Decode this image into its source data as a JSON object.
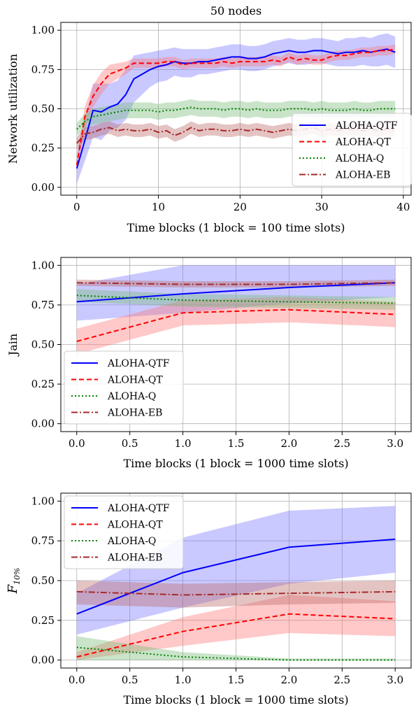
{
  "chart_data": [
    {
      "type": "line",
      "title": "50 nodes",
      "xlabel": "Time blocks (1 block = 100 time slots)",
      "ylabel": "Network utilization",
      "xlim": [
        -1.95,
        40.95
      ],
      "ylim": [
        -0.05,
        1.05
      ],
      "xticks": [
        "0",
        "10",
        "20",
        "30",
        "40"
      ],
      "yticks": [
        "0.00",
        "0.25",
        "0.50",
        "0.75",
        "1.00"
      ],
      "grid": true,
      "legend_position": "center-right",
      "series": [
        {
          "name": "ALOHA-QTF",
          "color": "#0000ff",
          "style": "solid",
          "x": [
            0,
            1,
            2,
            3,
            4,
            5,
            6,
            7,
            8,
            9,
            10,
            11,
            12,
            13,
            14,
            15,
            16,
            17,
            18,
            19,
            20,
            21,
            22,
            23,
            24,
            25,
            26,
            27,
            28,
            29,
            30,
            31,
            32,
            33,
            34,
            35,
            36,
            37,
            38,
            39
          ],
          "y": [
            0.12,
            0.3,
            0.49,
            0.48,
            0.51,
            0.53,
            0.59,
            0.69,
            0.72,
            0.75,
            0.77,
            0.78,
            0.8,
            0.79,
            0.79,
            0.8,
            0.8,
            0.81,
            0.82,
            0.83,
            0.83,
            0.82,
            0.82,
            0.83,
            0.85,
            0.86,
            0.87,
            0.86,
            0.86,
            0.87,
            0.87,
            0.86,
            0.85,
            0.86,
            0.86,
            0.87,
            0.86,
            0.87,
            0.88,
            0.86
          ],
          "band": [
            0.1,
            0.13,
            0.17,
            0.18,
            0.15,
            0.15,
            0.16,
            0.15,
            0.13,
            0.11,
            0.1,
            0.1,
            0.09,
            0.09,
            0.09,
            0.08,
            0.08,
            0.08,
            0.08,
            0.08,
            0.08,
            0.08,
            0.08,
            0.08,
            0.08,
            0.08,
            0.08,
            0.08,
            0.08,
            0.08,
            0.08,
            0.08,
            0.08,
            0.09,
            0.09,
            0.09,
            0.09,
            0.1,
            0.1,
            0.1
          ],
          "band_color": "#7777ff"
        },
        {
          "name": "ALOHA-QT",
          "color": "#ff0000",
          "style": "dashed",
          "x": [
            0,
            1,
            2,
            3,
            4,
            5,
            6,
            7,
            8,
            9,
            10,
            11,
            12,
            13,
            14,
            15,
            16,
            17,
            18,
            19,
            20,
            21,
            22,
            23,
            24,
            25,
            26,
            27,
            28,
            29,
            30,
            31,
            32,
            33,
            34,
            35,
            36,
            37,
            38,
            39
          ],
          "y": [
            0.14,
            0.45,
            0.58,
            0.66,
            0.72,
            0.74,
            0.76,
            0.79,
            0.79,
            0.79,
            0.79,
            0.8,
            0.8,
            0.78,
            0.79,
            0.79,
            0.79,
            0.79,
            0.8,
            0.79,
            0.8,
            0.8,
            0.8,
            0.8,
            0.81,
            0.8,
            0.83,
            0.81,
            0.82,
            0.81,
            0.81,
            0.83,
            0.84,
            0.84,
            0.85,
            0.86,
            0.86,
            0.87,
            0.87,
            0.88
          ],
          "band": [
            0.04,
            0.07,
            0.07,
            0.07,
            0.06,
            0.05,
            0.04,
            0.03,
            0.03,
            0.03,
            0.03,
            0.03,
            0.03,
            0.03,
            0.03,
            0.03,
            0.03,
            0.03,
            0.03,
            0.03,
            0.03,
            0.03,
            0.03,
            0.03,
            0.03,
            0.03,
            0.03,
            0.03,
            0.03,
            0.03,
            0.03,
            0.03,
            0.03,
            0.03,
            0.03,
            0.03,
            0.03,
            0.03,
            0.03,
            0.03
          ],
          "band_color": "#ff7777"
        },
        {
          "name": "ALOHA-Q",
          "color": "#008000",
          "style": "dotted",
          "x": [
            0,
            1,
            2,
            3,
            4,
            5,
            6,
            7,
            8,
            9,
            10,
            11,
            12,
            13,
            14,
            15,
            16,
            17,
            18,
            19,
            20,
            21,
            22,
            23,
            24,
            25,
            26,
            27,
            28,
            29,
            30,
            31,
            32,
            33,
            34,
            35,
            36,
            37,
            38,
            39
          ],
          "y": [
            0.37,
            0.42,
            0.45,
            0.46,
            0.47,
            0.48,
            0.49,
            0.49,
            0.49,
            0.49,
            0.48,
            0.49,
            0.49,
            0.5,
            0.51,
            0.5,
            0.5,
            0.5,
            0.49,
            0.5,
            0.5,
            0.49,
            0.5,
            0.49,
            0.49,
            0.49,
            0.5,
            0.5,
            0.5,
            0.49,
            0.5,
            0.49,
            0.49,
            0.49,
            0.5,
            0.49,
            0.49,
            0.5,
            0.5,
            0.5
          ],
          "band": [
            0.04,
            0.05,
            0.05,
            0.05,
            0.05,
            0.05,
            0.05,
            0.05,
            0.05,
            0.05,
            0.05,
            0.05,
            0.05,
            0.05,
            0.05,
            0.05,
            0.05,
            0.05,
            0.05,
            0.05,
            0.05,
            0.05,
            0.05,
            0.05,
            0.05,
            0.05,
            0.05,
            0.05,
            0.05,
            0.05,
            0.05,
            0.05,
            0.05,
            0.05,
            0.05,
            0.05,
            0.05,
            0.05,
            0.05,
            0.05
          ],
          "band_color": "#77bb77"
        },
        {
          "name": "ALOHA-EB",
          "color": "#a52a2a",
          "style": "dashdot",
          "x": [
            0,
            1,
            2,
            3,
            4,
            5,
            6,
            7,
            8,
            9,
            10,
            11,
            12,
            13,
            14,
            15,
            16,
            17,
            18,
            19,
            20,
            21,
            22,
            23,
            24,
            25,
            26,
            27,
            28,
            29,
            30,
            31,
            32,
            33,
            34,
            35,
            36,
            37,
            38,
            39
          ],
          "y": [
            0.28,
            0.34,
            0.35,
            0.37,
            0.38,
            0.36,
            0.37,
            0.36,
            0.36,
            0.37,
            0.35,
            0.36,
            0.33,
            0.35,
            0.38,
            0.36,
            0.37,
            0.37,
            0.36,
            0.36,
            0.37,
            0.36,
            0.37,
            0.36,
            0.35,
            0.36,
            0.37,
            0.36,
            0.37,
            0.38,
            0.36,
            0.37,
            0.36,
            0.37,
            0.37,
            0.36,
            0.37,
            0.36,
            0.37,
            0.36
          ],
          "band": [
            0.04,
            0.04,
            0.04,
            0.04,
            0.04,
            0.04,
            0.04,
            0.04,
            0.04,
            0.04,
            0.04,
            0.04,
            0.04,
            0.04,
            0.04,
            0.04,
            0.04,
            0.04,
            0.04,
            0.04,
            0.04,
            0.04,
            0.04,
            0.04,
            0.04,
            0.04,
            0.04,
            0.04,
            0.04,
            0.04,
            0.04,
            0.04,
            0.04,
            0.04,
            0.04,
            0.04,
            0.04,
            0.04,
            0.04,
            0.04
          ],
          "band_color": "#bb6a6a"
        }
      ]
    },
    {
      "type": "line",
      "title": "",
      "xlabel": "Time blocks (1 block = 1000 time slots)",
      "ylabel": "Jain",
      "xlim": [
        -0.15,
        3.15
      ],
      "ylim": [
        -0.05,
        1.05
      ],
      "xticks": [
        "0.0",
        "0.5",
        "1.0",
        "1.5",
        "2.0",
        "2.5",
        "3.0"
      ],
      "yticks": [
        "0.00",
        "0.25",
        "0.50",
        "0.75",
        "1.00"
      ],
      "grid": true,
      "legend_position": "center-left",
      "series": [
        {
          "name": "ALOHA-QTF",
          "color": "#0000ff",
          "style": "solid",
          "x": [
            0,
            1,
            2,
            3
          ],
          "y": [
            0.77,
            0.82,
            0.86,
            0.89
          ],
          "lo": [
            0.65,
            0.7,
            0.76,
            0.8
          ],
          "hi": [
            0.88,
            1.0,
            1.0,
            1.0
          ],
          "band_color": "#7777ff"
        },
        {
          "name": "ALOHA-QT",
          "color": "#ff0000",
          "style": "dashed",
          "x": [
            0,
            1,
            2,
            3
          ],
          "y": [
            0.52,
            0.7,
            0.72,
            0.69
          ],
          "lo": [
            0.44,
            0.62,
            0.64,
            0.61
          ],
          "hi": [
            0.6,
            0.78,
            0.8,
            0.77
          ],
          "band_color": "#ff7777"
        },
        {
          "name": "ALOHA-Q",
          "color": "#008000",
          "style": "dotted",
          "x": [
            0,
            1,
            2,
            3
          ],
          "y": [
            0.81,
            0.78,
            0.77,
            0.76
          ],
          "lo": [
            0.77,
            0.74,
            0.73,
            0.72
          ],
          "hi": [
            0.85,
            0.82,
            0.81,
            0.8
          ],
          "band_color": "#77bb77"
        },
        {
          "name": "ALOHA-EB",
          "color": "#a52a2a",
          "style": "dashdot",
          "x": [
            0,
            1,
            2,
            3
          ],
          "y": [
            0.89,
            0.88,
            0.88,
            0.89
          ],
          "lo": [
            0.87,
            0.86,
            0.86,
            0.87
          ],
          "hi": [
            0.91,
            0.9,
            0.9,
            0.91
          ],
          "band_color": "#bb6a6a"
        }
      ]
    },
    {
      "type": "line",
      "title": "",
      "xlabel": "Time blocks (1 block = 1000 time slots)",
      "ylabel": "F10%",
      "ylabel_main": "F",
      "ylabel_sub": "10%",
      "xlim": [
        -0.15,
        3.15
      ],
      "ylim": [
        -0.05,
        1.05
      ],
      "xticks": [
        "0.0",
        "0.5",
        "1.0",
        "1.5",
        "2.0",
        "2.5",
        "3.0"
      ],
      "yticks": [
        "0.00",
        "0.25",
        "0.50",
        "0.75",
        "1.00"
      ],
      "grid": true,
      "legend_position": "upper-left",
      "series": [
        {
          "name": "ALOHA-QTF",
          "color": "#0000ff",
          "style": "solid",
          "x": [
            0,
            1,
            2,
            3
          ],
          "y": [
            0.29,
            0.55,
            0.71,
            0.76
          ],
          "lo": [
            0.16,
            0.33,
            0.48,
            0.55
          ],
          "hi": [
            0.42,
            0.77,
            0.94,
            0.97
          ],
          "band_color": "#7777ff"
        },
        {
          "name": "ALOHA-QT",
          "color": "#ff0000",
          "style": "dashed",
          "x": [
            0,
            1,
            2,
            3
          ],
          "y": [
            0.02,
            0.18,
            0.29,
            0.26
          ],
          "lo": [
            0.0,
            0.09,
            0.17,
            0.15
          ],
          "hi": [
            0.05,
            0.27,
            0.41,
            0.37
          ],
          "band_color": "#ff7777"
        },
        {
          "name": "ALOHA-Q",
          "color": "#008000",
          "style": "dotted",
          "x": [
            0,
            1,
            2,
            3
          ],
          "y": [
            0.08,
            0.02,
            0.0,
            0.0
          ],
          "lo": [
            0.0,
            0.0,
            0.0,
            0.0
          ],
          "hi": [
            0.15,
            0.05,
            0.01,
            0.01
          ],
          "band_color": "#77bb77"
        },
        {
          "name": "ALOHA-EB",
          "color": "#a52a2a",
          "style": "dashdot",
          "x": [
            0,
            1,
            2,
            3
          ],
          "y": [
            0.43,
            0.41,
            0.42,
            0.43
          ],
          "lo": [
            0.35,
            0.33,
            0.35,
            0.36
          ],
          "hi": [
            0.5,
            0.48,
            0.49,
            0.5
          ],
          "band_color": "#bb6a6a"
        }
      ]
    }
  ]
}
